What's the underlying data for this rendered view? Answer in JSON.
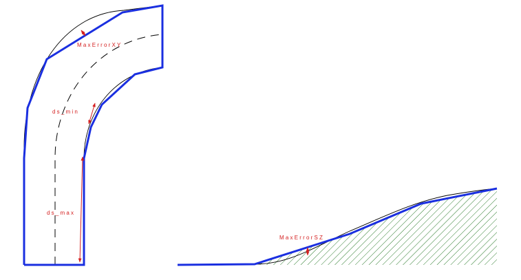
{
  "labels": {
    "max_error_xy": "MaxErrorXY",
    "ds_min": "ds_min",
    "ds_max": "ds_max",
    "max_error_sz": "MaxErrorSZ"
  },
  "colors": {
    "polyline": "#1a2fe0",
    "true_curve": "#000000",
    "annotation": "#d42020",
    "hatch": "#2e7d2e"
  }
}
